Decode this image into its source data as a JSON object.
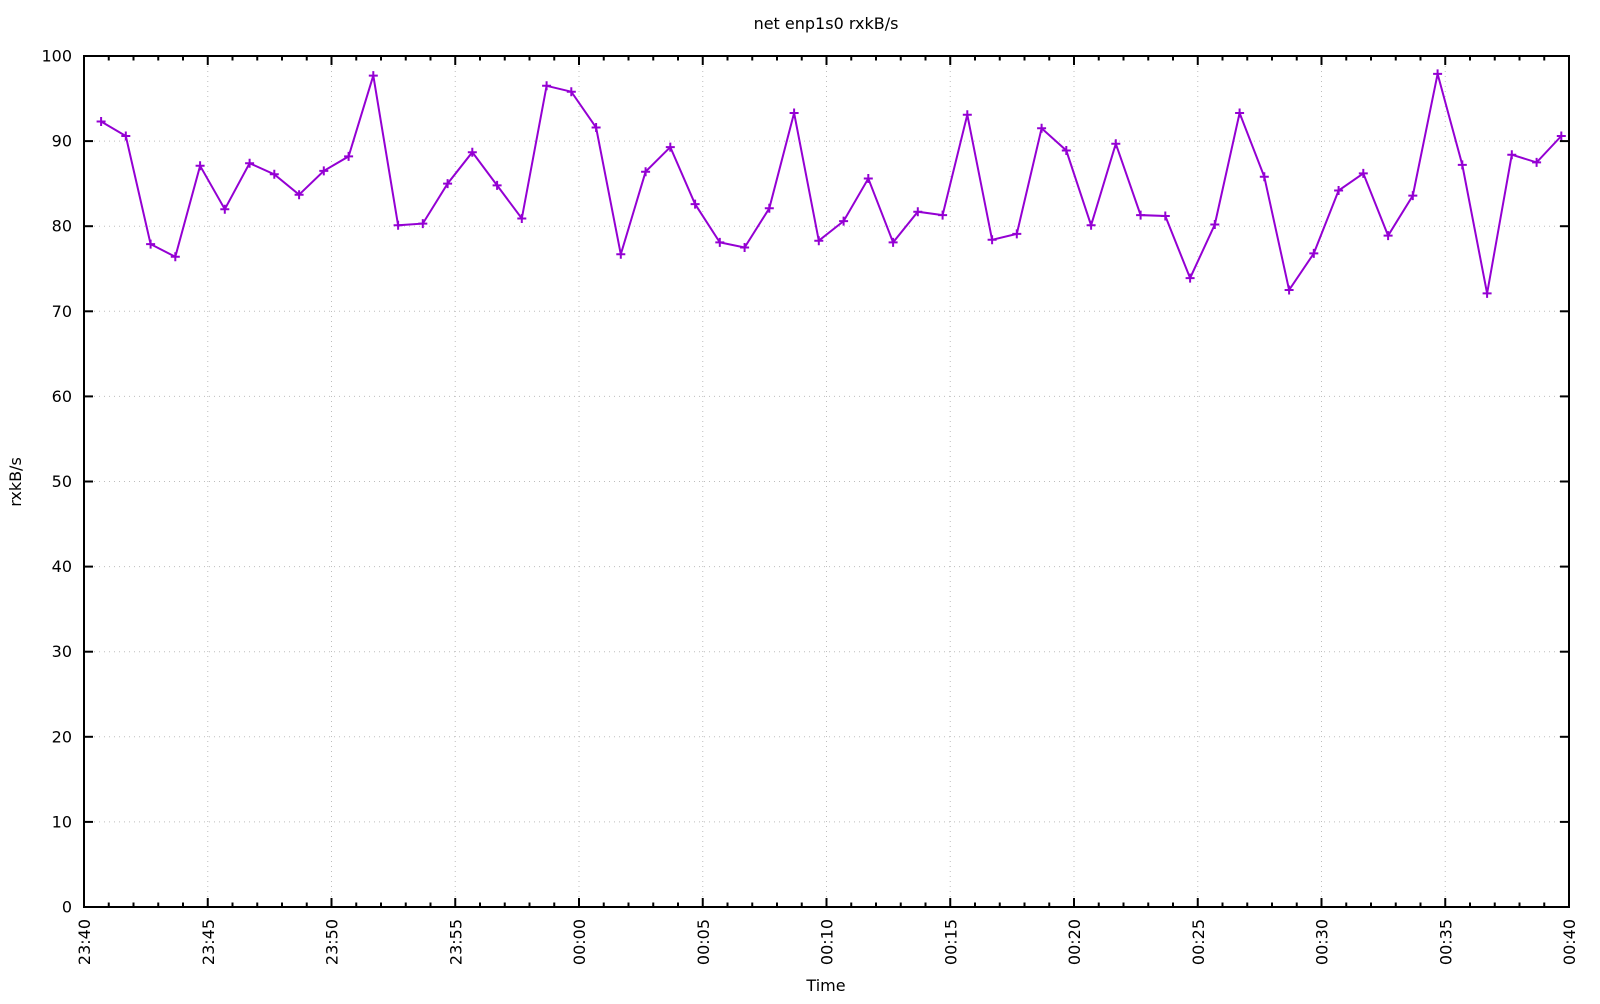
{
  "page": {
    "background_color": "#ffffff"
  },
  "chart_data": {
    "type": "line",
    "title": "net enp1s0 rxkB/s",
    "xlabel": "Time",
    "ylabel": "rxkB/s",
    "ylim": [
      0,
      100
    ],
    "grid": "dotted",
    "legend_position": "none",
    "y_ticks": [
      0,
      10,
      20,
      30,
      40,
      50,
      60,
      70,
      80,
      90,
      100
    ],
    "x_range_minutes": [
      0,
      60
    ],
    "x_minor_tick_step_min": 1,
    "x_ticks": [
      {
        "min": 0,
        "label": "23:40"
      },
      {
        "min": 5,
        "label": "23:45"
      },
      {
        "min": 10,
        "label": "23:50"
      },
      {
        "min": 15,
        "label": "23:55"
      },
      {
        "min": 20,
        "label": "00:00"
      },
      {
        "min": 25,
        "label": "00:05"
      },
      {
        "min": 30,
        "label": "00:10"
      },
      {
        "min": 35,
        "label": "00:15"
      },
      {
        "min": 40,
        "label": "00:20"
      },
      {
        "min": 45,
        "label": "00:25"
      },
      {
        "min": 50,
        "label": "00:30"
      },
      {
        "min": 55,
        "label": "00:35"
      },
      {
        "min": 60,
        "label": "00:40"
      }
    ],
    "series": [
      {
        "name": "rxkB/s",
        "color": "#9400d3",
        "marker": "plus",
        "x_start_min": 0.69,
        "x_step_min": 1.0,
        "values": [
          92.3,
          90.6,
          77.9,
          76.4,
          87.1,
          82.0,
          87.4,
          86.1,
          83.7,
          86.5,
          88.2,
          97.7,
          80.1,
          80.3,
          85.0,
          88.7,
          84.8,
          80.9,
          96.5,
          95.8,
          91.6,
          76.7,
          86.4,
          89.3,
          82.6,
          78.1,
          77.5,
          82.1,
          93.3,
          78.3,
          80.6,
          85.6,
          78.1,
          81.7,
          81.3,
          93.1,
          78.4,
          79.1,
          91.5,
          88.9,
          80.1,
          89.7,
          81.3,
          81.2,
          73.9,
          80.2,
          93.3,
          85.8,
          72.5,
          76.8,
          84.2,
          86.2,
          78.9,
          83.6,
          97.9,
          87.2,
          72.1,
          88.4,
          87.5,
          90.6
        ]
      }
    ],
    "colors": {
      "line": "#9400d3",
      "grid": "#bdbdbd",
      "axis": "#000000",
      "text": "#000000"
    }
  }
}
